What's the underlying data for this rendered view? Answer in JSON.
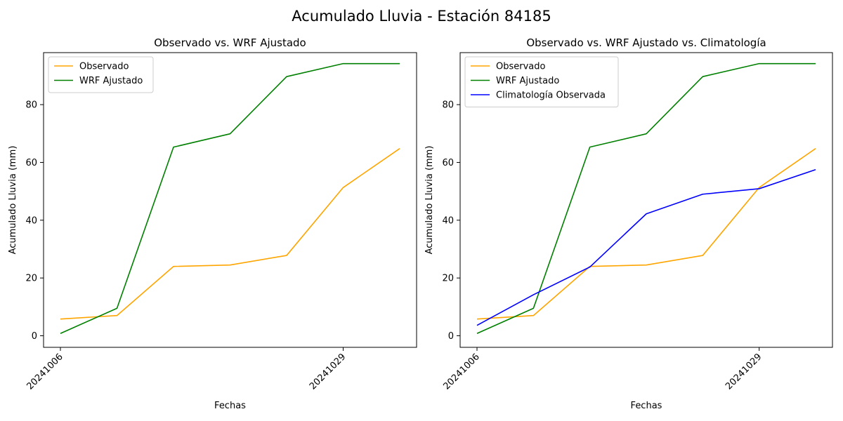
{
  "figure": {
    "suptitle": "Acumulado Lluvia - Estación 84185"
  },
  "chart_data": [
    {
      "type": "line",
      "title": "Observado vs. WRF Ajustado",
      "xlabel": "Fechas",
      "ylabel": "Acumulado Lluvia (mm)",
      "x_tick_labels": [
        "20241006",
        "20241029"
      ],
      "y_ticks": [
        0,
        20,
        40,
        60,
        80
      ],
      "ylim": [
        -4,
        98
      ],
      "legend_position": "upper-left",
      "grid": false,
      "series": [
        {
          "name": "Observado",
          "color": "#ffa500",
          "values": [
            5.8,
            7.0,
            24.0,
            24.5,
            27.8,
            51.3,
            64.8
          ]
        },
        {
          "name": "WRF Ajustado",
          "color": "#008000",
          "values": [
            0.8,
            9.5,
            65.3,
            69.9,
            89.7,
            94.2,
            94.2
          ]
        }
      ]
    },
    {
      "type": "line",
      "title": "Observado vs. WRF Ajustado vs. Climatología",
      "xlabel": "Fechas",
      "ylabel": "Acumulado Lluvia (mm)",
      "x_tick_labels": [
        "20241006",
        "20241029"
      ],
      "y_ticks": [
        0,
        20,
        40,
        60,
        80
      ],
      "ylim": [
        -4,
        98
      ],
      "legend_position": "upper-left",
      "grid": false,
      "series": [
        {
          "name": "Observado",
          "color": "#ffa500",
          "values": [
            5.8,
            7.0,
            24.0,
            24.5,
            27.8,
            51.3,
            64.8
          ]
        },
        {
          "name": "WRF Ajustado",
          "color": "#008000",
          "values": [
            0.8,
            9.5,
            65.3,
            69.9,
            89.7,
            94.2,
            94.2
          ]
        },
        {
          "name": "Climatología Observada",
          "color": "#0000ff",
          "values": [
            3.6,
            14.2,
            23.8,
            42.2,
            49.0,
            50.9,
            57.5
          ]
        }
      ]
    }
  ]
}
